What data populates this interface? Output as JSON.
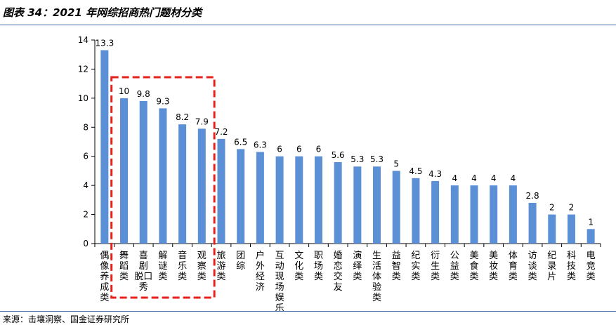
{
  "figure_title": "图表 34：2021 年网综招商热门题材分类",
  "source": "来源：击壤洞察、国金证券研究所",
  "colors": {
    "bar": "#5b8fd6",
    "highlight_box": "#e8201c",
    "axis": "#000000",
    "rule": "#4a6aa5"
  },
  "chart_data": {
    "type": "bar",
    "title": "",
    "xlabel": "",
    "ylabel": "",
    "ylim": [
      0,
      14
    ],
    "yticks": [
      0,
      2,
      4,
      6,
      8,
      10,
      12,
      14
    ],
    "grid": false,
    "legend": "none",
    "categories": [
      "偶像养成类",
      "舞蹈类",
      "喜剧脱口秀",
      "解谜类",
      "音乐类",
      "观察类",
      "旅游类",
      "团综",
      "户外经济",
      "互动现场娱乐",
      "文化类",
      "职场类",
      "婚恋交友",
      "演绎类",
      "生活体验类",
      "益智类",
      "纪实类",
      "衍生类",
      "公益类",
      "美食类",
      "美妆类",
      "体育类",
      "访谈类",
      "纪录片",
      "科技类",
      "电竞类"
    ],
    "label_lines": [
      [
        "偶",
        "像",
        "养",
        "成",
        "类"
      ],
      [
        "舞",
        "蹈",
        "类"
      ],
      [
        "喜",
        "剧",
        "脱口",
        "秀"
      ],
      [
        "解",
        "谜",
        "类"
      ],
      [
        "音",
        "乐",
        "类"
      ],
      [
        "观",
        "察",
        "类"
      ],
      [
        "旅",
        "游",
        "类"
      ],
      [
        "团",
        "综"
      ],
      [
        "户",
        "外",
        "经",
        "济"
      ],
      [
        "互",
        "动",
        "现",
        "场",
        "娱",
        "乐"
      ],
      [
        "文",
        "化",
        "类"
      ],
      [
        "职",
        "场",
        "类"
      ],
      [
        "婚",
        "恋",
        "交",
        "友"
      ],
      [
        "演",
        "绎",
        "类"
      ],
      [
        "生",
        "活",
        "体",
        "验",
        "类"
      ],
      [
        "益",
        "智",
        "类"
      ],
      [
        "纪",
        "实",
        "类"
      ],
      [
        "衍",
        "生",
        "类"
      ],
      [
        "公",
        "益",
        "类"
      ],
      [
        "美",
        "食",
        "类"
      ],
      [
        "美",
        "妆",
        "类"
      ],
      [
        "体",
        "育",
        "类"
      ],
      [
        "访",
        "谈",
        "类"
      ],
      [
        "纪",
        "录",
        "片"
      ],
      [
        "科",
        "技",
        "类"
      ],
      [
        "电",
        "竞",
        "类"
      ]
    ],
    "values": [
      13.3,
      10,
      9.8,
      9.3,
      8.2,
      7.9,
      7.2,
      6.5,
      6.3,
      6,
      6,
      6,
      5.6,
      5.3,
      5.3,
      5,
      4.5,
      4.3,
      4,
      4,
      4,
      4,
      2.8,
      2,
      2,
      1
    ],
    "value_labels": [
      "13.3",
      "10",
      "9.8",
      "9.3",
      "8.2",
      "7.9",
      "7.2",
      "6.5",
      "6.3",
      "6",
      "6",
      "6",
      "5.6",
      "5.3",
      "5.3",
      "5",
      "4.5",
      "4.3",
      "4",
      "4",
      "4",
      "4",
      "2.8",
      "2",
      "2",
      "1"
    ],
    "highlight": {
      "from_index": 1,
      "to_index": 5,
      "style": "dashed-box"
    }
  }
}
